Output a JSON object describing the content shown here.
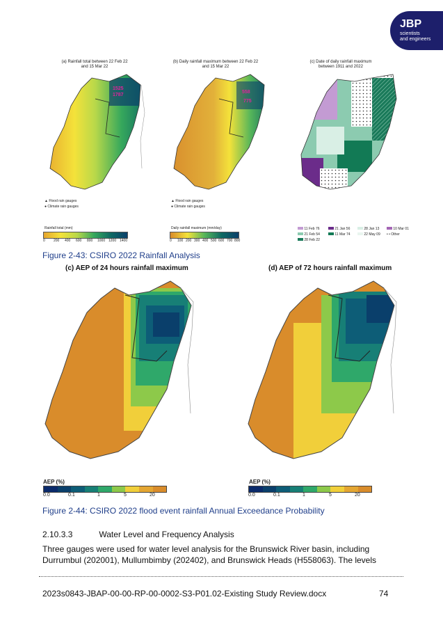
{
  "logo": {
    "brand": "JBP",
    "tagline_1": "scientists",
    "tagline_2": "and engineers"
  },
  "fig43": {
    "panel_a": {
      "title_1": "(a) Rainfall total between 22 Feb 22",
      "title_2": "and 15 Mar 22",
      "val1": "1525",
      "val2": "1787"
    },
    "panel_b": {
      "title_1": "(b) Daily rainfall maximum between 22 Feb 22",
      "title_2": "and 15 Mar 22",
      "val1": "558",
      "val2": "775"
    },
    "panel_c": {
      "title_1": "(c) Date of daily rainfall maximum",
      "title_2": "between 1911 and 2022"
    },
    "gauges": {
      "flood": "Flood rain gauges",
      "climate": "Climate rain gauges"
    },
    "colorbar_a": {
      "label": "Rainfall total (mm)",
      "ticks": [
        "0",
        "200",
        "400",
        "600",
        "800",
        "1000",
        "1200",
        "1400"
      ]
    },
    "colorbar_b": {
      "label": "Daily rainfall maximum (mm/day)",
      "ticks": [
        "0",
        "100",
        "200",
        "300",
        "400",
        "500",
        "600",
        "700",
        "800"
      ]
    },
    "date_legend": [
      "11 Feb 76",
      "21 Jan 56",
      "28 Jan 13",
      "10 Mar 01",
      "21 Feb 54",
      "11 Mar 74",
      "22 May 09",
      "Other",
      "28 Feb 22"
    ],
    "caption": "Figure 2-43: CSIRO 2022 Rainfall Analysis"
  },
  "fig44": {
    "title_c": "(c) AEP of 24 hours rainfall maximum",
    "title_d": "(d) AEP of 72 hours rainfall maximum",
    "aep_label": "AEP (%)",
    "ticks": [
      "0.0",
      "0.1",
      "1",
      "5",
      "20"
    ],
    "caption": "Figure 2-44: CSIRO 2022 flood event rainfall Annual Exceedance Probability"
  },
  "section": {
    "number": "2.10.3.3",
    "title": "Water Level and Frequency Analysis"
  },
  "body": {
    "line1": "Three gauges were used for water level analysis for the Brunswick River basin, including",
    "line2": "Durrumbul (202001), Mullumbimby (202402), and Brunswick Heads (H558063). The levels"
  },
  "footer": {
    "doc": "2023s0843-JBAP-00-00-RP-00-0002-S3-P01.02-Existing Study Review.docx",
    "page": "74"
  },
  "colors": {
    "accent": "#1d1f6b",
    "caption": "#1f3e8a",
    "aep_orange": "#d98c2b"
  }
}
